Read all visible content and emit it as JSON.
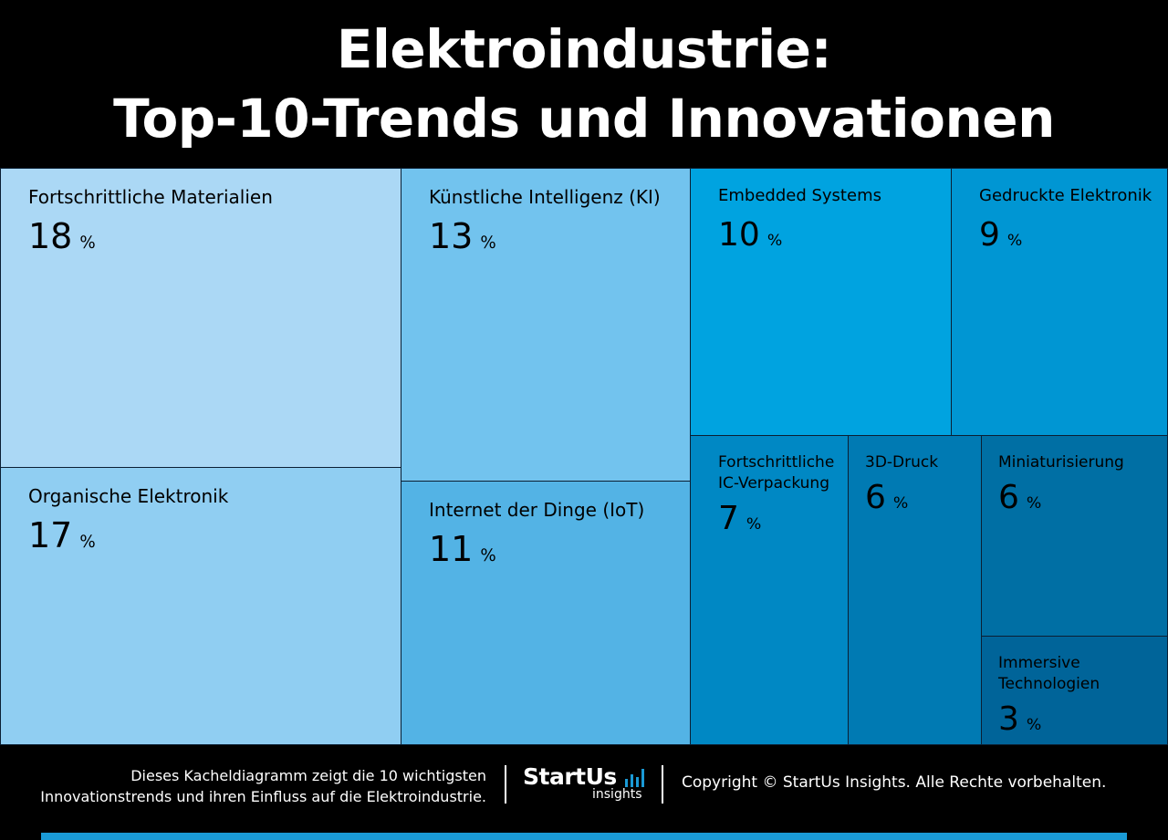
{
  "title": {
    "line1": "Elektroindustrie:",
    "line2": "Top-10-Trends und Innovationen"
  },
  "chart_data": {
    "type": "treemap",
    "unit": "%",
    "items": [
      {
        "label": "Fortschrittliche Materialien",
        "value": 18,
        "color": "#abd8f5"
      },
      {
        "label": "Organische Elektronik",
        "value": 17,
        "color": "#90cef2"
      },
      {
        "label": "Künstliche Intelligenz (KI)",
        "value": 13,
        "color": "#72c3ee"
      },
      {
        "label": "Internet der Dinge (IoT)",
        "value": 11,
        "color": "#53b3e5"
      },
      {
        "label": "Embedded Systems",
        "value": 10,
        "color": "#00a3e0"
      },
      {
        "label": "Gedruckte Elektronik",
        "value": 9,
        "color": "#0096d3"
      },
      {
        "label": "Fortschrittliche IC-Verpackung",
        "value": 7,
        "color": "#0088c4"
      },
      {
        "label": "3D-Druck",
        "value": 6,
        "color": "#007ab3"
      },
      {
        "label": "Miniaturisierung",
        "value": 6,
        "color": "#006fa4"
      },
      {
        "label": "Immersive Technologien",
        "value": 3,
        "color": "#006499"
      }
    ]
  },
  "footer": {
    "description_line1": "Dieses Kacheldiagramm zeigt die 10 wichtigsten",
    "description_line2": "Innovationstrends und ihren Einfluss auf die Elektroindustrie.",
    "logo_main": "StartUs",
    "logo_sub": "insights",
    "copyright": "Copyright © StartUs Insights. Alle Rechte vorbehalten.",
    "accent_color": "#1a9ad6"
  }
}
